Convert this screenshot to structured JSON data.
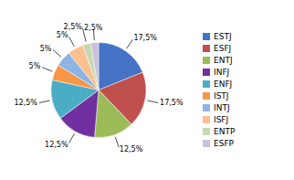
{
  "chart_data": {
    "type": "pie",
    "categories": [
      "ESTJ",
      "ESFJ",
      "ENTJ",
      "INFJ",
      "ENFJ",
      "ISTJ",
      "INTJ",
      "ISFJ",
      "ENTP",
      "ESFP"
    ],
    "values": [
      17.5,
      17.5,
      12.5,
      12.5,
      12.5,
      5.0,
      5.0,
      5.0,
      2.5,
      2.5
    ],
    "value_labels": [
      "17,5%",
      "17,5%",
      "12,5%",
      "12,5%",
      "12,5%",
      "5%",
      "5%",
      "5%",
      "2,5%",
      "2,5%"
    ],
    "colors": [
      "#4472C4",
      "#C0504D",
      "#9BBB59",
      "#7030A0",
      "#4BACC6",
      "#F79646",
      "#8DB4E2",
      "#FAC090",
      "#C6D9B0",
      "#CCC1DA"
    ],
    "legend": "right",
    "data_labels": true
  }
}
